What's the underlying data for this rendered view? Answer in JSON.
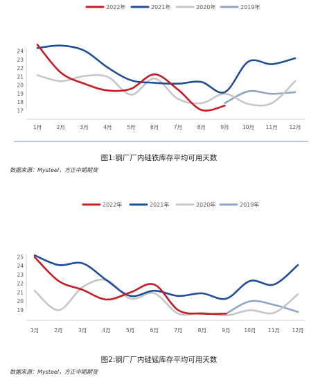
{
  "chart_data": [
    {
      "type": "line",
      "title": "",
      "xlabel": "",
      "ylabel": "",
      "categories": [
        "1月",
        "2月",
        "3月",
        "4月",
        "5月",
        "6月",
        "7月",
        "8月",
        "9月",
        "10月",
        "11月",
        "12月"
      ],
      "yticks": [
        17,
        18,
        19,
        20,
        21,
        22,
        23,
        24
      ],
      "ylim": [
        16,
        25
      ],
      "legend_position": "top",
      "series": [
        {
          "name": "2022年",
          "color": "#c21c24",
          "values": [
            24.8,
            21.5,
            20.2,
            19.4,
            19.6,
            21.3,
            19.5,
            17.1,
            17.6,
            null,
            null,
            null
          ]
        },
        {
          "name": "2021年",
          "color": "#1f4e95",
          "values": [
            24.4,
            24.7,
            24.1,
            22.1,
            20.6,
            20.3,
            20.2,
            20.4,
            19.2,
            22.8,
            22.5,
            23.2
          ]
        },
        {
          "name": "2020年",
          "color": "#c6c6c6",
          "values": [
            21.2,
            20.5,
            21.1,
            21.0,
            18.9,
            20.8,
            18.4,
            17.9,
            19.0,
            17.8,
            17.9,
            20.5
          ]
        },
        {
          "name": "2019年",
          "color": "#8ea5c8",
          "values": [
            null,
            null,
            null,
            null,
            null,
            null,
            null,
            null,
            17.9,
            19.3,
            19.0,
            19.2
          ]
        }
      ],
      "caption": "图1:钢厂厂内硅铁库存平均可用天数",
      "source": "数据来源：Mysteel，方正中期期货"
    },
    {
      "type": "line",
      "title": "",
      "xlabel": "",
      "ylabel": "",
      "categories": [
        "1月",
        "2月",
        "3月",
        "4月",
        "5月",
        "6月",
        "7月",
        "8月",
        "9月",
        "10月",
        "11月",
        "12月"
      ],
      "yticks": [
        19,
        20,
        21,
        22,
        23,
        24,
        25
      ],
      "ylim": [
        18,
        26
      ],
      "legend_position": "top",
      "series": [
        {
          "name": "2022年",
          "color": "#c21c24",
          "values": [
            25.0,
            22.3,
            21.3,
            20.2,
            21.0,
            21.9,
            19.0,
            18.6,
            18.6,
            null,
            null,
            null
          ]
        },
        {
          "name": "2021年",
          "color": "#1f4e95",
          "values": [
            25.2,
            24.1,
            24.3,
            22.4,
            20.6,
            21.2,
            20.6,
            20.9,
            20.3,
            22.3,
            21.9,
            24.1
          ]
        },
        {
          "name": "2020年",
          "color": "#c6c6c6",
          "values": [
            21.2,
            19.0,
            21.6,
            22.4,
            20.3,
            20.9,
            18.6,
            18.7,
            18.4,
            19.0,
            18.7,
            20.8
          ]
        },
        {
          "name": "2019年",
          "color": "#8ea5c8",
          "values": [
            null,
            null,
            null,
            null,
            null,
            null,
            null,
            null,
            18.6,
            20.0,
            19.6,
            18.8
          ]
        }
      ],
      "caption": "图2:钢厂厂内硅锰库存平均可用天数",
      "source": "数据来源：Mysteel，方正中期期货"
    }
  ]
}
